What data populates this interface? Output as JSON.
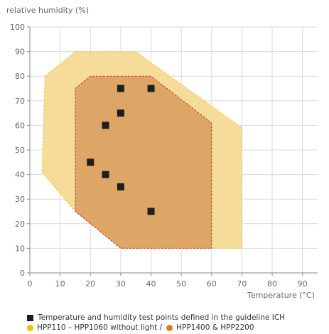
{
  "chart_data": {
    "type": "scatter",
    "title": "",
    "ylabel": "relative humidity (%)",
    "xlabel": "Temperature (°C)",
    "xlim": [
      0,
      95
    ],
    "ylim": [
      0,
      100
    ],
    "xticks": [
      0,
      10,
      20,
      30,
      40,
      50,
      60,
      70,
      80,
      90
    ],
    "yticks": [
      0,
      10,
      20,
      30,
      40,
      50,
      60,
      70,
      80,
      90,
      100
    ],
    "grid": true,
    "regions": [
      {
        "name": "HPP110 – HPP1060 without light /",
        "color": "#f5dc9a",
        "border_color": "#e8c94a",
        "polygon": [
          [
            5,
            80
          ],
          [
            15,
            90
          ],
          [
            35,
            90
          ],
          [
            70,
            59
          ],
          [
            70,
            10
          ],
          [
            30,
            10
          ],
          [
            15,
            25
          ],
          [
            4,
            41
          ]
        ]
      },
      {
        "name": "HPP1400 & HPP2200",
        "color": "#dda666",
        "border_color": "#c0392b",
        "polygon": [
          [
            15,
            75
          ],
          [
            20,
            80
          ],
          [
            40,
            80
          ],
          [
            60,
            61
          ],
          [
            60,
            10
          ],
          [
            30,
            10
          ],
          [
            15,
            25
          ]
        ]
      }
    ],
    "series": [
      {
        "name": "Temperature and humidity test points defined in the guideline ICH",
        "marker": "square",
        "color": "#1e1e1e",
        "points": [
          [
            30,
            75
          ],
          [
            40,
            75
          ],
          [
            30,
            65
          ],
          [
            25,
            60
          ],
          [
            20,
            45
          ],
          [
            25,
            40
          ],
          [
            30,
            35
          ],
          [
            40,
            25
          ]
        ]
      }
    ]
  },
  "legend": {
    "points_label": "Temperature and humidity test points defined in the guideline ICH",
    "region1_label": "HPP110 – HPP1060 without light /",
    "region2_label": "HPP1400 & HPP2200",
    "region1_dot_color": "#f2c200",
    "region2_dot_color": "#e07b1e"
  }
}
